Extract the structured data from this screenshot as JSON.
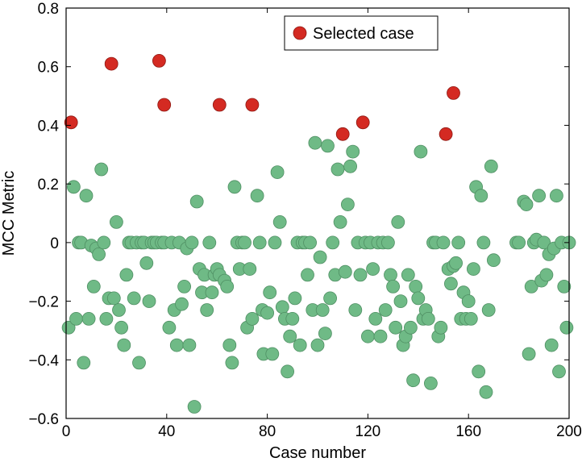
{
  "chart_data": {
    "type": "scatter",
    "title": "",
    "xlabel": "Case number",
    "ylabel": "MCC Metric",
    "xlim": [
      0,
      200
    ],
    "ylim": [
      -0.6,
      0.8
    ],
    "xticks": [
      0,
      40,
      80,
      120,
      160,
      200
    ],
    "yticks": [
      -0.6,
      -0.4,
      -0.2,
      0,
      0.2,
      0.4,
      0.6,
      0.8
    ],
    "xtick_labels": [
      "0",
      "40",
      "80",
      "120",
      "160",
      "200"
    ],
    "ytick_labels": [
      "−0.6",
      "−0.4",
      "−0.2",
      "0",
      "0.2",
      "0.4",
      "0.6",
      "0.8"
    ],
    "grid": false,
    "legend": {
      "position": "top-right",
      "entries": [
        "Selected case"
      ]
    },
    "colors": {
      "other": "#6fba86",
      "selected": "#d42a22"
    },
    "series": [
      {
        "name": "",
        "role": "other",
        "points": [
          [
            1,
            -0.29
          ],
          [
            3,
            0.19
          ],
          [
            4,
            -0.26
          ],
          [
            5,
            0.0
          ],
          [
            6,
            0.0
          ],
          [
            7,
            -0.41
          ],
          [
            8,
            0.16
          ],
          [
            9,
            -0.26
          ],
          [
            10,
            -0.01
          ],
          [
            11,
            -0.15
          ],
          [
            12,
            -0.02
          ],
          [
            13,
            -0.04
          ],
          [
            14,
            0.25
          ],
          [
            15,
            0.0
          ],
          [
            16,
            -0.26
          ],
          [
            17,
            -0.19
          ],
          [
            19,
            -0.19
          ],
          [
            20,
            0.07
          ],
          [
            21,
            -0.23
          ],
          [
            22,
            -0.29
          ],
          [
            23,
            -0.35
          ],
          [
            24,
            -0.11
          ],
          [
            25,
            0.0
          ],
          [
            26,
            0.0
          ],
          [
            27,
            -0.19
          ],
          [
            28,
            0.0
          ],
          [
            29,
            -0.41
          ],
          [
            30,
            0.0
          ],
          [
            31,
            0.0
          ],
          [
            32,
            -0.07
          ],
          [
            33,
            -0.2
          ],
          [
            34,
            0.0
          ],
          [
            35,
            0.0
          ],
          [
            36,
            0.0
          ],
          [
            38,
            0.0
          ],
          [
            39,
            0.0
          ],
          [
            41,
            -0.29
          ],
          [
            42,
            0.0
          ],
          [
            43,
            -0.23
          ],
          [
            44,
            -0.35
          ],
          [
            45,
            0.0
          ],
          [
            46,
            -0.21
          ],
          [
            47,
            -0.15
          ],
          [
            48,
            -0.02
          ],
          [
            49,
            -0.35
          ],
          [
            50,
            0.0
          ],
          [
            51,
            -0.56
          ],
          [
            52,
            0.14
          ],
          [
            53,
            -0.09
          ],
          [
            54,
            -0.17
          ],
          [
            55,
            -0.11
          ],
          [
            56,
            -0.23
          ],
          [
            57,
            0.0
          ],
          [
            58,
            -0.17
          ],
          [
            59,
            -0.11
          ],
          [
            60,
            -0.09
          ],
          [
            61,
            -0.11
          ],
          [
            63,
            -0.13
          ],
          [
            64,
            -0.15
          ],
          [
            65,
            -0.35
          ],
          [
            66,
            -0.41
          ],
          [
            67,
            0.19
          ],
          [
            68,
            0.0
          ],
          [
            69,
            -0.09
          ],
          [
            70,
            0.0
          ],
          [
            71,
            0.0
          ],
          [
            72,
            -0.29
          ],
          [
            73,
            -0.09
          ],
          [
            74,
            -0.26
          ],
          [
            76,
            0.16
          ],
          [
            77,
            0.0
          ],
          [
            78,
            -0.23
          ],
          [
            78.5,
            -0.38
          ],
          [
            80,
            -0.24
          ],
          [
            81,
            -0.17
          ],
          [
            82,
            -0.38
          ],
          [
            83,
            0.0
          ],
          [
            84,
            0.24
          ],
          [
            85,
            0.07
          ],
          [
            86,
            -0.22
          ],
          [
            87,
            -0.26
          ],
          [
            88,
            -0.44
          ],
          [
            89,
            -0.32
          ],
          [
            90,
            -0.26
          ],
          [
            91,
            -0.19
          ],
          [
            92,
            0.0
          ],
          [
            93,
            -0.35
          ],
          [
            94,
            0.0
          ],
          [
            95,
            0.0
          ],
          [
            96,
            -0.11
          ],
          [
            97,
            0.0
          ],
          [
            98,
            -0.23
          ],
          [
            99,
            0.34
          ],
          [
            100,
            -0.35
          ],
          [
            101,
            -0.05
          ],
          [
            102,
            -0.23
          ],
          [
            103,
            -0.31
          ],
          [
            104,
            0.33
          ],
          [
            105,
            -0.19
          ],
          [
            106,
            0.0
          ],
          [
            107,
            -0.11
          ],
          [
            108,
            0.25
          ],
          [
            109,
            0.07
          ],
          [
            111,
            -0.1
          ],
          [
            112,
            0.13
          ],
          [
            113,
            0.26
          ],
          [
            114,
            0.31
          ],
          [
            115,
            -0.23
          ],
          [
            116,
            0.0
          ],
          [
            117,
            -0.11
          ],
          [
            119,
            0.0
          ],
          [
            120,
            -0.32
          ],
          [
            121,
            0.0
          ],
          [
            122,
            -0.09
          ],
          [
            123,
            -0.26
          ],
          [
            124,
            0.0
          ],
          [
            125,
            -0.32
          ],
          [
            126,
            0.0
          ],
          [
            127,
            -0.23
          ],
          [
            128,
            0.0
          ],
          [
            129,
            -0.11
          ],
          [
            130,
            -0.15
          ],
          [
            131,
            -0.29
          ],
          [
            132,
            0.07
          ],
          [
            133,
            -0.2
          ],
          [
            134,
            -0.35
          ],
          [
            135,
            -0.32
          ],
          [
            136,
            -0.11
          ],
          [
            137,
            -0.29
          ],
          [
            138,
            -0.47
          ],
          [
            139,
            -0.15
          ],
          [
            140,
            -0.19
          ],
          [
            141,
            0.31
          ],
          [
            142,
            -0.26
          ],
          [
            143,
            -0.23
          ],
          [
            144,
            -0.26
          ],
          [
            145,
            -0.48
          ],
          [
            146,
            0.0
          ],
          [
            147,
            0.0
          ],
          [
            148,
            -0.32
          ],
          [
            149,
            -0.29
          ],
          [
            150,
            0.0
          ],
          [
            152,
            -0.09
          ],
          [
            153,
            -0.14
          ],
          [
            154,
            -0.08
          ],
          [
            155,
            -0.07
          ],
          [
            156,
            0.0
          ],
          [
            157,
            -0.26
          ],
          [
            158,
            -0.17
          ],
          [
            159,
            -0.26
          ],
          [
            160,
            -0.2
          ],
          [
            161,
            -0.26
          ],
          [
            162,
            -0.09
          ],
          [
            163,
            0.19
          ],
          [
            164,
            -0.44
          ],
          [
            165,
            0.16
          ],
          [
            166,
            0.0
          ],
          [
            167,
            -0.51
          ],
          [
            168,
            -0.23
          ],
          [
            169,
            0.26
          ],
          [
            170,
            -0.06
          ],
          [
            179,
            0.0
          ],
          [
            180,
            0.0
          ],
          [
            182,
            0.14
          ],
          [
            183,
            0.13
          ],
          [
            184,
            -0.38
          ],
          [
            185,
            -0.15
          ],
          [
            186,
            0.0
          ],
          [
            187,
            0.01
          ],
          [
            188,
            0.16
          ],
          [
            189,
            -0.13
          ],
          [
            190,
            0.0
          ],
          [
            191,
            -0.11
          ],
          [
            192,
            -0.04
          ],
          [
            193,
            -0.35
          ],
          [
            194,
            -0.02
          ],
          [
            195,
            0.16
          ],
          [
            196,
            -0.44
          ],
          [
            197,
            0.0
          ],
          [
            198,
            -0.15
          ],
          [
            199,
            -0.29
          ],
          [
            200,
            0.0
          ]
        ]
      },
      {
        "name": "Selected case",
        "role": "selected",
        "points": [
          [
            2,
            0.41
          ],
          [
            18,
            0.61
          ],
          [
            37,
            0.62
          ],
          [
            39,
            0.47
          ],
          [
            61,
            0.47
          ],
          [
            74,
            0.47
          ],
          [
            110,
            0.37
          ],
          [
            118,
            0.41
          ],
          [
            151,
            0.37
          ],
          [
            154,
            0.51
          ]
        ]
      }
    ]
  }
}
